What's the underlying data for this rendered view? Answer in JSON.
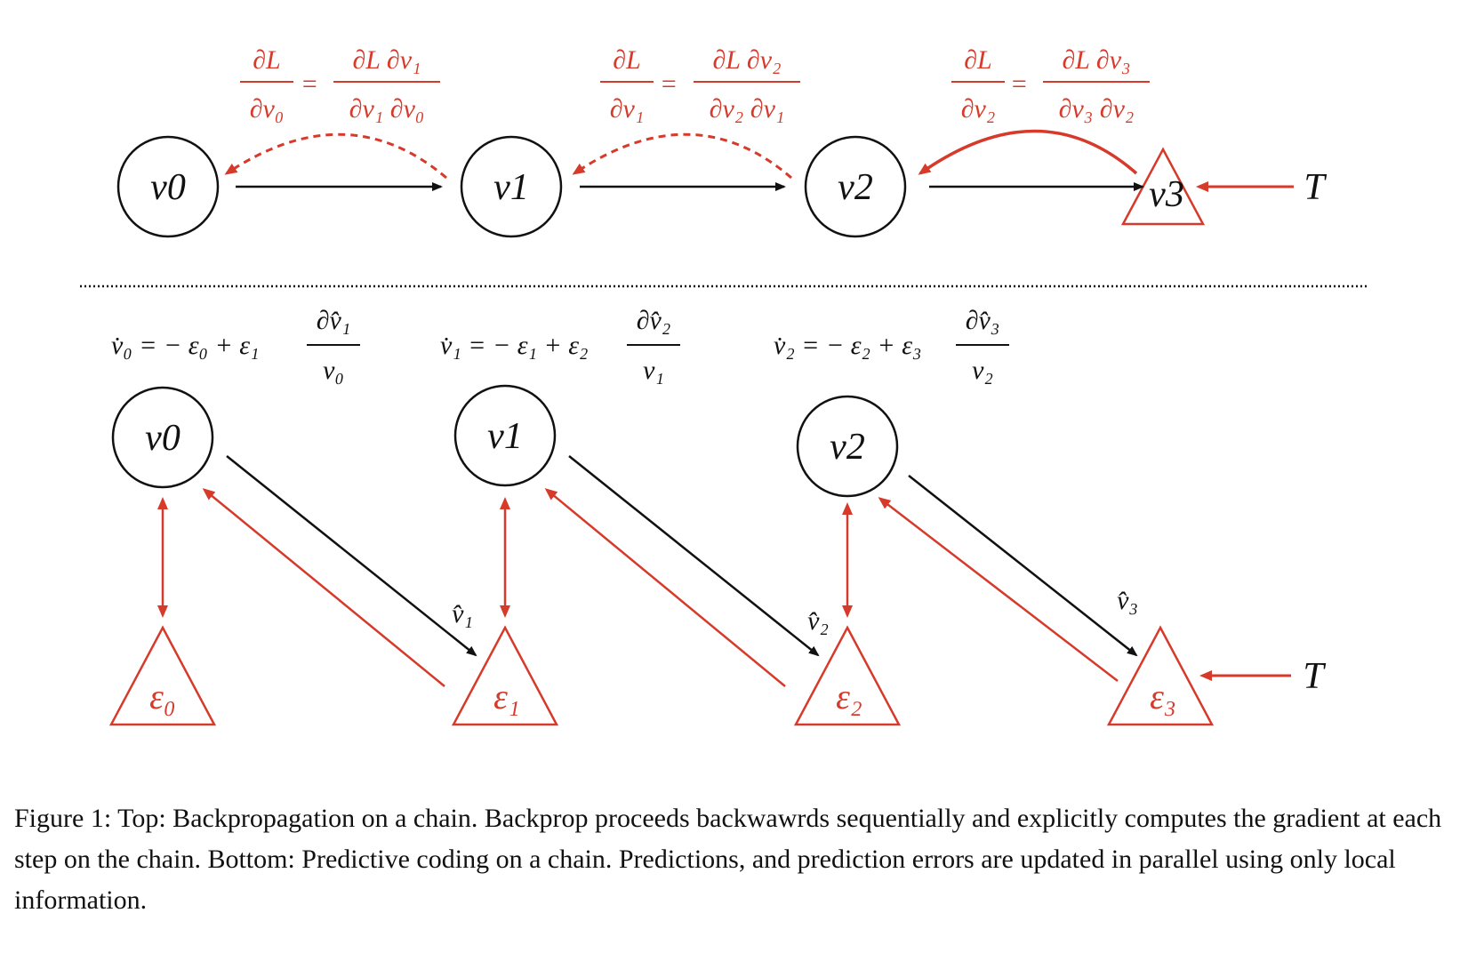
{
  "top": {
    "nodes": [
      "v0",
      "v1",
      "v2"
    ],
    "output_node": "v3",
    "target": "T",
    "gradients": [
      {
        "lhs_num": "∂L",
        "lhs_den": "∂v₀",
        "rhs_num": "∂L ∂v₁",
        "rhs_den": "∂v₁ ∂v₀"
      },
      {
        "lhs_num": "∂L",
        "lhs_den": "∂v₁",
        "rhs_num": "∂L ∂v₂",
        "rhs_den": "∂v₂ ∂v₁"
      },
      {
        "lhs_num": "∂L",
        "lhs_den": "∂v₂",
        "rhs_num": "∂L ∂v₃",
        "rhs_den": "∂v₃ ∂v₂"
      }
    ]
  },
  "bottom": {
    "nodes": [
      "v0",
      "v1",
      "v2"
    ],
    "errors": [
      "ε₀",
      "ε₁",
      "ε₂",
      "ε₃"
    ],
    "predictions": [
      "v̂₁",
      "v̂₂",
      "v̂₃"
    ],
    "target": "T",
    "updates": [
      {
        "lhs": "v̇₀ = − ε₀ + ε₁",
        "num": "∂v̂₁",
        "den": "v₀"
      },
      {
        "lhs": "v̇₁ = − ε₁ + ε₂",
        "num": "∂v̂₂",
        "den": "v₁"
      },
      {
        "lhs": "v̇₂ = − ε₂ + ε₃",
        "num": "∂v̂₃",
        "den": "v₂"
      }
    ]
  },
  "caption": "Figure 1: Top: Backpropagation on a chain. Backprop proceeds backwawrds sequentially and explicitly computes the gradient at each step on the chain. Bottom: Predictive coding on a chain. Predictions, and prediction errors are updated in parallel using only local information.",
  "colors": {
    "accent": "#d63a2a",
    "ink": "#111111"
  }
}
